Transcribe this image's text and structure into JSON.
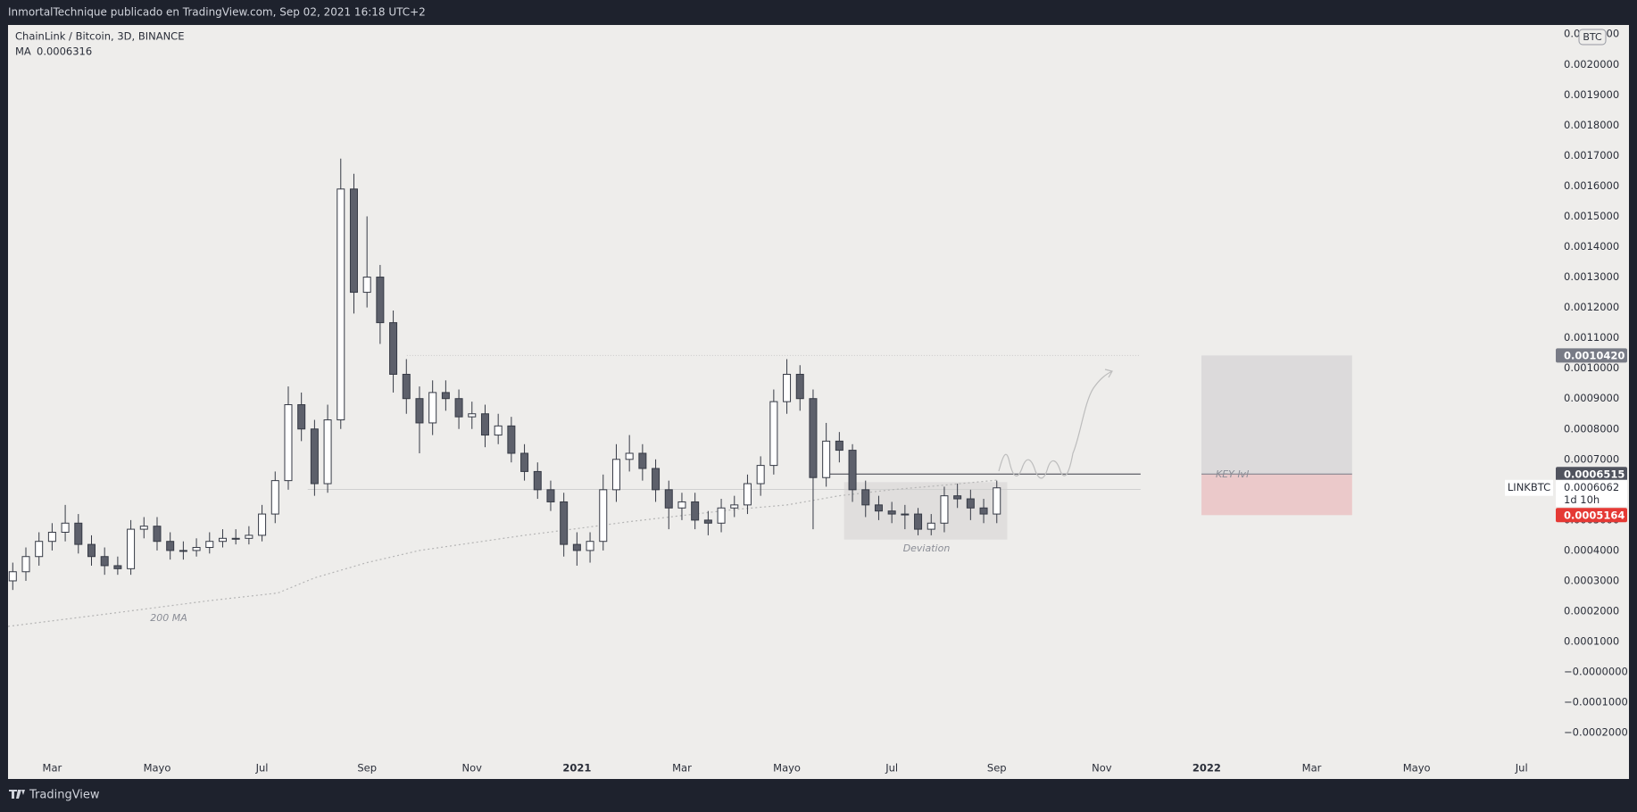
{
  "header": {
    "byline": "InmortalTechnique publicado en TradingView.com, Sep 02, 2021 16:18 UTC+2"
  },
  "footer": {
    "brand": "TradingView"
  },
  "chart_data": {
    "type": "candlestick",
    "title": "ChainLink / Bitcoin, 3D, BINANCE",
    "currency": "BTC",
    "up_color": "#ffffff",
    "down_color": "#5d606b",
    "wick_color": "#363a45",
    "grid": false,
    "xlim": [
      1.16,
      30.6
    ],
    "xticks": [
      {
        "value": 2,
        "label": "Mar"
      },
      {
        "value": 4,
        "label": "Mayo"
      },
      {
        "value": 6,
        "label": "Jul"
      },
      {
        "value": 8,
        "label": "Sep"
      },
      {
        "value": 10,
        "label": "Nov"
      },
      {
        "value": 12,
        "label": "2021"
      },
      {
        "value": 14,
        "label": "Mar"
      },
      {
        "value": 16,
        "label": "Mayo"
      },
      {
        "value": 18,
        "label": "Jul"
      },
      {
        "value": 20,
        "label": "Sep"
      },
      {
        "value": 22,
        "label": "Nov"
      },
      {
        "value": 24,
        "label": "2022"
      },
      {
        "value": 26,
        "label": "Mar"
      },
      {
        "value": 28,
        "label": "Mayo"
      },
      {
        "value": 30,
        "label": "Jul"
      }
    ],
    "ylim": [
      -0.00027,
      0.00213
    ],
    "yticks": [
      {
        "value": -0.0002,
        "label": "−0.0002000"
      },
      {
        "value": -0.0001,
        "label": "−0.0001000"
      },
      {
        "value": 0,
        "label": "−0.0000000"
      },
      {
        "value": 0.0001,
        "label": "0.0001000"
      },
      {
        "value": 0.0002,
        "label": "0.0002000"
      },
      {
        "value": 0.0003,
        "label": "0.0003000"
      },
      {
        "value": 0.0004,
        "label": "0.0004000"
      },
      {
        "value": 0.0005,
        "label": "0.0005000"
      },
      {
        "value": 0.0006,
        "label": "0.0006000"
      },
      {
        "value": 0.0007,
        "label": "0.0007000"
      },
      {
        "value": 0.0008,
        "label": "0.0008000"
      },
      {
        "value": 0.0009,
        "label": "0.0009000"
      },
      {
        "value": 0.001,
        "label": "0.0010000"
      },
      {
        "value": 0.0011,
        "label": "0.0011000"
      },
      {
        "value": 0.0012,
        "label": "0.0012000"
      },
      {
        "value": 0.0013,
        "label": "0.0013000"
      },
      {
        "value": 0.0014,
        "label": "0.0014000"
      },
      {
        "value": 0.0015,
        "label": "0.0015000"
      },
      {
        "value": 0.0016,
        "label": "0.0016000"
      },
      {
        "value": 0.0017,
        "label": "0.0017000"
      },
      {
        "value": 0.0018,
        "label": "0.0018000"
      },
      {
        "value": 0.0019,
        "label": "0.0019000"
      },
      {
        "value": 0.002,
        "label": "0.0020000"
      },
      {
        "value": 0.0021,
        "label": "0.0021000"
      }
    ],
    "x": [
      1.25,
      1.5,
      1.75,
      2,
      2.25,
      2.5,
      2.75,
      3,
      3.25,
      3.5,
      3.75,
      4,
      4.25,
      4.5,
      4.75,
      5,
      5.25,
      5.5,
      5.75,
      6,
      6.25,
      6.5,
      6.75,
      7,
      7.25,
      7.5,
      7.75,
      8,
      8.25,
      8.5,
      8.75,
      9,
      9.25,
      9.5,
      9.75,
      10,
      10.25,
      10.5,
      10.75,
      11,
      11.25,
      11.5,
      11.75,
      12,
      12.25,
      12.5,
      12.75,
      13,
      13.25,
      13.5,
      13.75,
      14,
      14.25,
      14.5,
      14.75,
      15,
      15.25,
      15.5,
      15.75,
      16,
      16.25,
      16.5,
      16.75,
      17,
      17.25,
      17.5,
      17.75,
      18,
      18.25,
      18.5,
      18.75,
      19,
      19.25,
      19.5,
      19.75,
      20
    ],
    "open": [
      0.0003,
      0.00033,
      0.00038,
      0.00043,
      0.00046,
      0.00049,
      0.00042,
      0.00038,
      0.00035,
      0.00034,
      0.00047,
      0.00048,
      0.00043,
      0.0004,
      0.0004,
      0.00041,
      0.00043,
      0.00044,
      0.00044,
      0.00045,
      0.00052,
      0.00063,
      0.00088,
      0.0008,
      0.00062,
      0.00083,
      0.00159,
      0.00125,
      0.0013,
      0.00115,
      0.00098,
      0.0009,
      0.00082,
      0.00092,
      0.0009,
      0.00084,
      0.00085,
      0.00078,
      0.00081,
      0.00072,
      0.00066,
      0.0006,
      0.00056,
      0.00042,
      0.0004,
      0.00043,
      0.0006,
      0.0007,
      0.00072,
      0.00067,
      0.0006,
      0.00054,
      0.00056,
      0.0005,
      0.00049,
      0.00054,
      0.00055,
      0.00062,
      0.00068,
      0.00089,
      0.00098,
      0.0009,
      0.00064,
      0.00076,
      0.00073,
      0.0006,
      0.00055,
      0.00053,
      0.00052,
      0.00052,
      0.00047,
      0.00049,
      0.00058,
      0.00057,
      0.00054,
      0.00052
    ],
    "high": [
      0.00036,
      0.00041,
      0.00046,
      0.00049,
      0.00055,
      0.00052,
      0.00045,
      0.00041,
      0.00038,
      0.0005,
      0.00051,
      0.00051,
      0.00046,
      0.00043,
      0.00044,
      0.00046,
      0.00047,
      0.00047,
      0.00048,
      0.00055,
      0.00066,
      0.00094,
      0.00092,
      0.00083,
      0.00088,
      0.00169,
      0.00164,
      0.0015,
      0.00134,
      0.00119,
      0.00103,
      0.00094,
      0.00096,
      0.00096,
      0.00093,
      0.00089,
      0.00088,
      0.00085,
      0.00084,
      0.00075,
      0.00069,
      0.00063,
      0.00059,
      0.00046,
      0.00046,
      0.00065,
      0.00075,
      0.00078,
      0.00075,
      0.0007,
      0.00063,
      0.00059,
      0.00059,
      0.00053,
      0.00057,
      0.00058,
      0.00065,
      0.00071,
      0.00093,
      0.00103,
      0.00101,
      0.00093,
      0.00082,
      0.00079,
      0.00075,
      0.00063,
      0.00058,
      0.00056,
      0.00055,
      0.00054,
      0.00052,
      0.00061,
      0.00062,
      0.0006,
      0.00057,
      0.00063
    ],
    "low": [
      0.00027,
      0.0003,
      0.00035,
      0.0004,
      0.00043,
      0.00039,
      0.00035,
      0.00032,
      0.00032,
      0.00032,
      0.00044,
      0.0004,
      0.00037,
      0.00037,
      0.00038,
      0.00039,
      0.00041,
      0.00042,
      0.00042,
      0.00043,
      0.00049,
      0.0006,
      0.00076,
      0.00058,
      0.00059,
      0.0008,
      0.00118,
      0.0012,
      0.00108,
      0.00092,
      0.00085,
      0.00072,
      0.00078,
      0.00086,
      0.0008,
      0.0008,
      0.00074,
      0.00075,
      0.00069,
      0.00063,
      0.00057,
      0.00053,
      0.00038,
      0.00035,
      0.00036,
      0.0004,
      0.00056,
      0.00066,
      0.00063,
      0.00056,
      0.00047,
      0.0005,
      0.00047,
      0.00045,
      0.00046,
      0.00051,
      0.00052,
      0.00058,
      0.00065,
      0.00085,
      0.00086,
      0.00047,
      0.00061,
      0.00069,
      0.00056,
      0.00051,
      0.0005,
      0.00049,
      0.00047,
      0.00045,
      0.00045,
      0.00046,
      0.00054,
      0.0005,
      0.00049,
      0.00049
    ],
    "close": [
      0.00033,
      0.00038,
      0.00043,
      0.00046,
      0.00049,
      0.00042,
      0.00038,
      0.00035,
      0.00034,
      0.00047,
      0.00048,
      0.00043,
      0.0004,
      0.0004,
      0.00041,
      0.00043,
      0.00044,
      0.00044,
      0.00045,
      0.00052,
      0.00063,
      0.00088,
      0.0008,
      0.00062,
      0.00083,
      0.00159,
      0.00125,
      0.0013,
      0.00115,
      0.00098,
      0.0009,
      0.00082,
      0.00092,
      0.0009,
      0.00084,
      0.00085,
      0.00078,
      0.00081,
      0.00072,
      0.00066,
      0.0006,
      0.00056,
      0.00042,
      0.0004,
      0.00043,
      0.0006,
      0.0007,
      0.00072,
      0.00067,
      0.0006,
      0.00054,
      0.00056,
      0.0005,
      0.00049,
      0.00054,
      0.00055,
      0.00062,
      0.00068,
      0.00089,
      0.00098,
      0.0009,
      0.00064,
      0.00076,
      0.00073,
      0.0006,
      0.00055,
      0.00053,
      0.00052,
      0.00052,
      0.00047,
      0.00049,
      0.00058,
      0.00057,
      0.00054,
      0.00052,
      0.0006062
    ],
    "ma": {
      "name": "MA",
      "value": 0.0006316,
      "color": "#b5b5b5",
      "x": [
        1.16,
        3,
        5,
        6.3,
        7,
        8,
        9,
        10,
        11,
        12,
        13,
        14,
        15,
        16,
        17,
        18,
        19,
        20
      ],
      "values": [
        0.00015,
        0.00019,
        0.000235,
        0.00026,
        0.00031,
        0.00036,
        0.0004,
        0.000425,
        0.00045,
        0.000472,
        0.000495,
        0.000515,
        0.000535,
        0.00055,
        0.00058,
        0.0006,
        0.000615,
        0.0006316
      ]
    },
    "levels": [
      {
        "value": 0.001042,
        "x": [
          8.76,
          22.74
        ],
        "style": "dotted"
      },
      {
        "value": 0.000601,
        "x": [
          6.87,
          22.74
        ],
        "style": "light"
      },
      {
        "value": 0.0006515,
        "x": [
          16.72,
          22.74
        ],
        "style": "solid"
      }
    ],
    "deviation_zone": {
      "x": [
        17.09,
        20.2
      ],
      "y": [
        0.000436,
        0.000625
      ]
    },
    "position": {
      "x": [
        23.9,
        26.77
      ],
      "target": 0.001042,
      "entry": 0.0006515,
      "stop": 0.0005164
    },
    "annotations": [
      "KEY lvl",
      "Deviation",
      "200 MA"
    ],
    "price_labels": [
      {
        "value": 0.001042,
        "label": "0.0010420",
        "color": "#787b86"
      },
      {
        "value": 0.0006515,
        "color": "#50535e"
      },
      {
        "value": 0.0005164,
        "color": "#e53935"
      }
    ],
    "last": {
      "symbol": "LINKBTC",
      "value": 0.0006062,
      "countdown": "1d 10h"
    }
  }
}
